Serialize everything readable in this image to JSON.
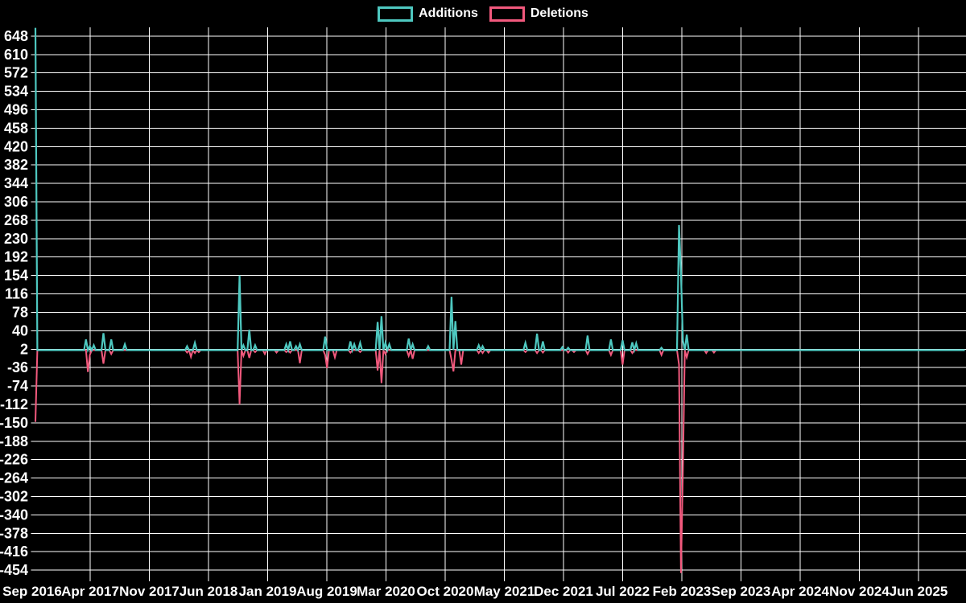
{
  "page": {
    "background": "#000000",
    "grid_color": "#ffffff",
    "text_color": "#ffffff"
  },
  "legend": {
    "position": "top-center"
  },
  "chart_data": {
    "type": "line",
    "x_unit": "week",
    "x_start": "Sep 2016",
    "x_end": "Jun 2025",
    "x_tick_labels": [
      "Sep 2016",
      "Apr 2017",
      "Nov 2017",
      "Jun 2018",
      "Jan 2019",
      "Aug 2019",
      "Mar 2020",
      "Oct 2020",
      "May 2021",
      "Dec 2021",
      "Jul 2022",
      "Feb 2023",
      "Sep 2023",
      "Apr 2024",
      "Nov 2024",
      "Jun 2025"
    ],
    "weeks_per_x_tick": 30.44,
    "total_weeks": 478,
    "y_tick_labels": [
      648,
      610,
      572,
      534,
      496,
      458,
      420,
      382,
      344,
      306,
      268,
      230,
      192,
      154,
      116,
      78,
      40,
      2,
      -36,
      -74,
      -112,
      -150,
      -188,
      -226,
      -264,
      -302,
      -340,
      -378,
      -416,
      -454
    ],
    "ylim": [
      -477,
      666
    ],
    "grid": true,
    "legend_position": "top-center",
    "baseline_value": 0,
    "series": [
      {
        "name": "Additions",
        "color": "#4ec8c0",
        "default": 0,
        "points": [
          [
            0,
            665
          ],
          [
            26,
            22
          ],
          [
            28,
            8
          ],
          [
            30,
            10
          ],
          [
            35,
            35
          ],
          [
            39,
            22
          ],
          [
            46,
            12
          ],
          [
            78,
            8
          ],
          [
            82,
            15
          ],
          [
            105,
            154
          ],
          [
            107,
            10
          ],
          [
            110,
            42
          ],
          [
            113,
            10
          ],
          [
            129,
            12
          ],
          [
            131,
            18
          ],
          [
            134,
            8
          ],
          [
            136,
            12
          ],
          [
            149,
            28
          ],
          [
            162,
            18
          ],
          [
            164,
            12
          ],
          [
            167,
            15
          ],
          [
            176,
            58
          ],
          [
            178,
            70
          ],
          [
            180,
            15
          ],
          [
            182,
            12
          ],
          [
            192,
            24
          ],
          [
            194,
            12
          ],
          [
            202,
            8
          ],
          [
            214,
            110
          ],
          [
            216,
            60
          ],
          [
            228,
            10
          ],
          [
            230,
            8
          ],
          [
            252,
            15
          ],
          [
            258,
            34
          ],
          [
            261,
            18
          ],
          [
            271,
            6
          ],
          [
            274,
            5
          ],
          [
            284,
            30
          ],
          [
            296,
            22
          ],
          [
            302,
            20
          ],
          [
            307,
            16
          ],
          [
            309,
            14
          ],
          [
            322,
            5
          ],
          [
            331,
            258
          ],
          [
            332,
            160
          ],
          [
            333,
            20
          ],
          [
            335,
            32
          ]
        ]
      },
      {
        "name": "Deletions",
        "color": "#f2597d",
        "default": 0,
        "points": [
          [
            0,
            -148
          ],
          [
            27,
            -45
          ],
          [
            28,
            -10
          ],
          [
            35,
            -28
          ],
          [
            39,
            -8
          ],
          [
            78,
            -5
          ],
          [
            80,
            -14
          ],
          [
            82,
            -6
          ],
          [
            84,
            -4
          ],
          [
            105,
            -112
          ],
          [
            107,
            -12
          ],
          [
            110,
            -16
          ],
          [
            113,
            -4
          ],
          [
            118,
            -8
          ],
          [
            124,
            -5
          ],
          [
            129,
            -4
          ],
          [
            131,
            -5
          ],
          [
            136,
            -27
          ],
          [
            149,
            -10
          ],
          [
            150,
            -37
          ],
          [
            154,
            -15
          ],
          [
            162,
            -5
          ],
          [
            167,
            -4
          ],
          [
            176,
            -42
          ],
          [
            178,
            -68
          ],
          [
            180,
            -8
          ],
          [
            192,
            -12
          ],
          [
            194,
            -18
          ],
          [
            214,
            -20
          ],
          [
            215,
            -44
          ],
          [
            219,
            -30
          ],
          [
            228,
            -6
          ],
          [
            230,
            -6
          ],
          [
            233,
            -5
          ],
          [
            252,
            -4
          ],
          [
            258,
            -6
          ],
          [
            261,
            -5
          ],
          [
            274,
            -5
          ],
          [
            277,
            -4
          ],
          [
            284,
            -8
          ],
          [
            296,
            -10
          ],
          [
            302,
            -30
          ],
          [
            307,
            -6
          ],
          [
            322,
            -10
          ],
          [
            331,
            -30
          ],
          [
            332,
            -460
          ],
          [
            333,
            -250
          ],
          [
            335,
            -15
          ],
          [
            345,
            -6
          ],
          [
            349,
            -5
          ]
        ]
      }
    ]
  }
}
